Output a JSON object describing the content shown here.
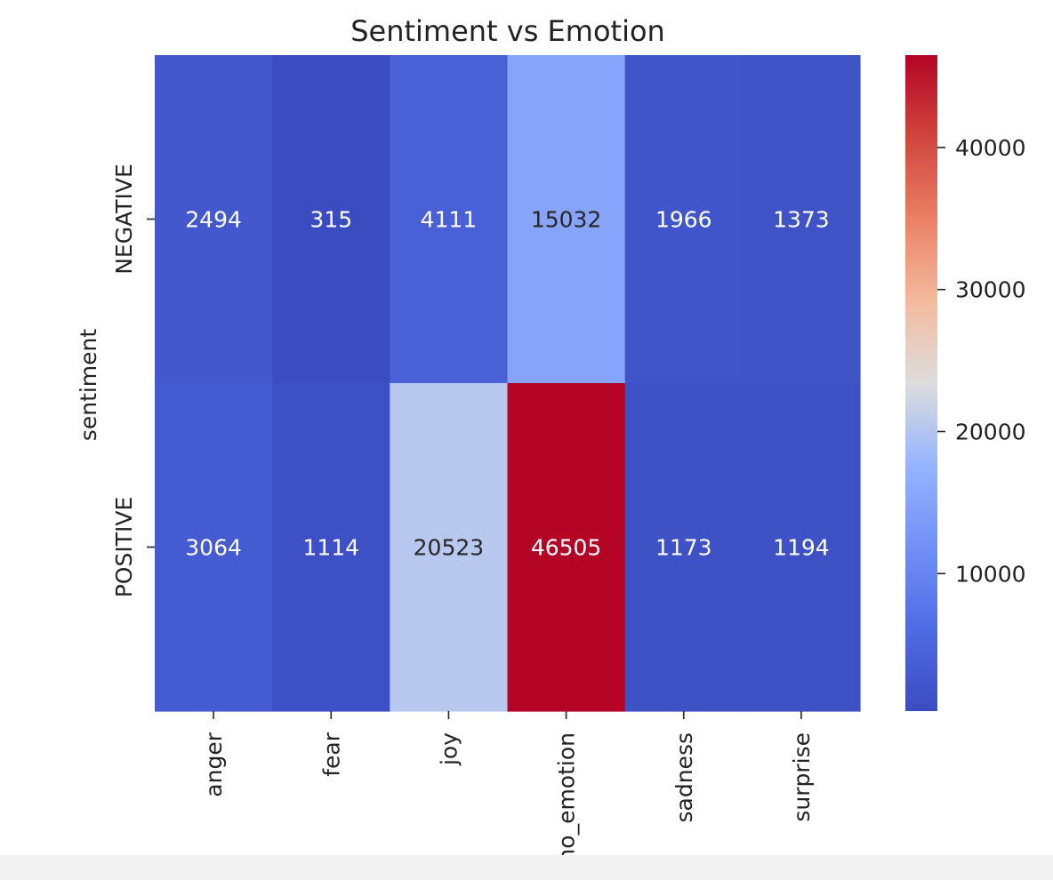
{
  "chart_data": {
    "type": "heatmap",
    "title": "Sentiment vs Emotion",
    "xlabel": "",
    "ylabel": "sentiment",
    "x_categories": [
      "anger",
      "fear",
      "joy",
      "no_emotion",
      "sadness",
      "surprise"
    ],
    "y_categories": [
      "NEGATIVE",
      "POSITIVE"
    ],
    "values": [
      [
        2494,
        315,
        4111,
        15032,
        1966,
        1373
      ],
      [
        3064,
        1114,
        20523,
        46505,
        1173,
        1194
      ]
    ],
    "colormap": "coolwarm",
    "color_range": [
      315,
      46505
    ],
    "colorbar": {
      "ticks": [
        10000,
        20000,
        30000,
        40000
      ],
      "labels": [
        "10000",
        "20000",
        "30000",
        "40000"
      ]
    },
    "annotations": true
  }
}
